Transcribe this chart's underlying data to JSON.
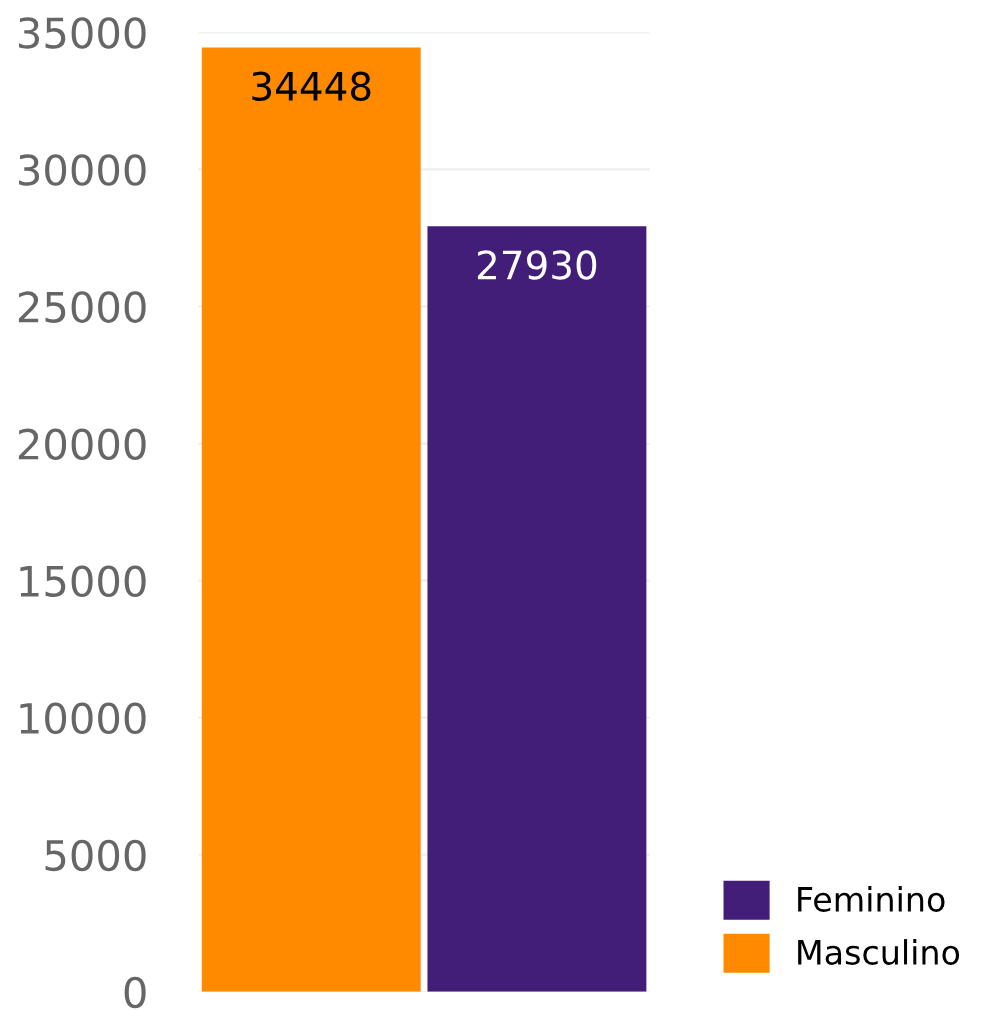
{
  "chart_data": {
    "type": "bar",
    "categories": [
      null,
      null
    ],
    "series": [
      {
        "name": "Masculino",
        "color": "#ff8a00",
        "values": [
          34448,
          null
        ]
      },
      {
        "name": "Feminino",
        "color": "#431e78",
        "values": [
          null,
          27930
        ]
      }
    ],
    "ylim": [
      0,
      35000
    ],
    "yticks": [
      0,
      5000,
      10000,
      15000,
      20000,
      25000,
      30000,
      35000
    ],
    "grid": "y",
    "legend": "bottom right",
    "data_labels": true
  }
}
